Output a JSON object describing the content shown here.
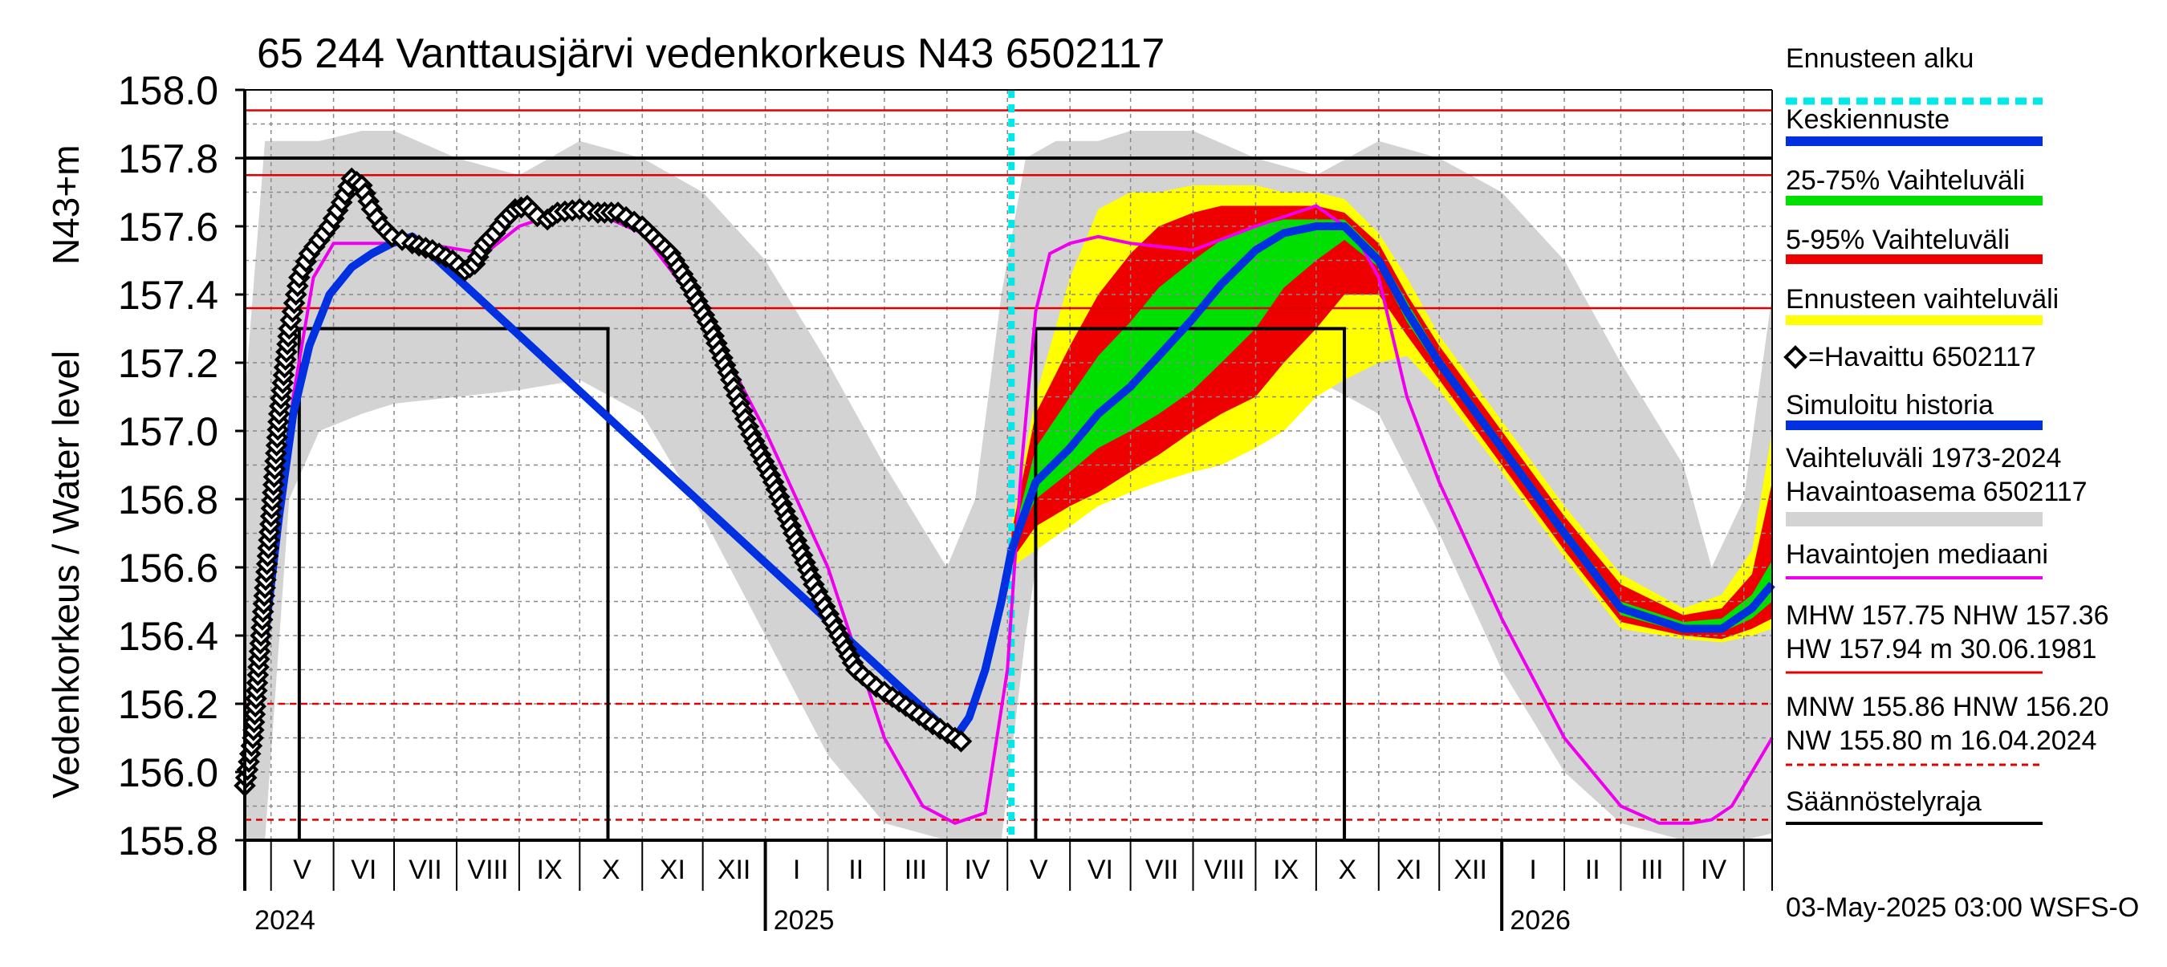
{
  "chart_data": {
    "type": "area",
    "title": "65 244 Vanttausjärvi vedenkorkeus N43 6502117",
    "ylabel": "Vedenkorkeus / Water level",
    "yunit": "N43+m",
    "ylim": [
      155.8,
      158.0
    ],
    "yticks": [
      "155.8",
      "156.0",
      "156.2",
      "156.4",
      "156.6",
      "156.8",
      "157.0",
      "157.2",
      "157.4",
      "157.6",
      "157.8",
      "158.0"
    ],
    "xlim": [
      "2024-04-18",
      "2026-05-15"
    ],
    "months": [
      "V",
      "VI",
      "VII",
      "VIII",
      "IX",
      "X",
      "XI",
      "XII",
      "I",
      "II",
      "III",
      "IV",
      "V",
      "VI",
      "VII",
      "VIII",
      "IX",
      "X",
      "XI",
      "XII",
      "I",
      "II",
      "III",
      "IV"
    ],
    "years": [
      "2024",
      "2025",
      "2026"
    ],
    "forecast_start": "2025-05-03",
    "ref_lines": [
      {
        "name": "HW",
        "value": 157.94,
        "style": "solid",
        "color": "#e00000"
      },
      {
        "name": "Säännöstelyraja upper",
        "value": 157.8,
        "style": "solid",
        "color": "#000000"
      },
      {
        "name": "MHW",
        "value": 157.75,
        "style": "solid",
        "color": "#e00000"
      },
      {
        "name": "NHW",
        "value": 157.36,
        "style": "solid",
        "color": "#e00000"
      },
      {
        "name": "HNW",
        "value": 156.2,
        "style": "dashed",
        "color": "#e00000"
      },
      {
        "name": "MNW",
        "value": 155.86,
        "style": "dashed",
        "color": "#e00000"
      },
      {
        "name": "NW",
        "value": 155.8,
        "style": "dashed",
        "color": "#e00000"
      }
    ],
    "regulation_periods": [
      {
        "start": "2024-05-15",
        "end": "2024-10-15",
        "value": 157.3
      },
      {
        "start": "2025-05-15",
        "end": "2025-10-15",
        "value": 157.3
      }
    ],
    "observed": {
      "name": "=Havaittu 6502117",
      "x": [
        "2024-04-18",
        "2024-04-22",
        "2024-04-26",
        "2024-05-01",
        "2024-05-05",
        "2024-05-10",
        "2024-05-15",
        "2024-05-20",
        "2024-05-25",
        "2024-05-30",
        "2024-06-05",
        "2024-06-10",
        "2024-06-15",
        "2024-06-20",
        "2024-06-25",
        "2024-06-30",
        "2024-07-05",
        "2024-07-10",
        "2024-07-20",
        "2024-07-30",
        "2024-08-05",
        "2024-08-10",
        "2024-08-15",
        "2024-08-20",
        "2024-08-25",
        "2024-08-30",
        "2024-09-05",
        "2024-09-10",
        "2024-09-15",
        "2024-09-20",
        "2024-10-01",
        "2024-10-10",
        "2024-10-20",
        "2024-11-01",
        "2024-11-15",
        "2024-11-25",
        "2024-12-05",
        "2024-12-15",
        "2024-12-25",
        "2025-01-05",
        "2025-01-15",
        "2025-01-25",
        "2025-02-05",
        "2025-02-15",
        "2025-02-25",
        "2025-03-05",
        "2025-03-15",
        "2025-03-25",
        "2025-04-05",
        "2025-04-08"
      ],
      "y": [
        155.96,
        156.1,
        156.4,
        156.75,
        157.05,
        157.3,
        157.45,
        157.52,
        157.56,
        157.6,
        157.67,
        157.74,
        157.72,
        157.65,
        157.6,
        157.57,
        157.56,
        157.55,
        157.53,
        157.5,
        157.47,
        157.49,
        157.55,
        157.58,
        157.62,
        157.65,
        157.66,
        157.63,
        157.62,
        157.64,
        157.65,
        157.64,
        157.64,
        157.6,
        157.52,
        157.42,
        157.3,
        157.15,
        156.99,
        156.85,
        156.7,
        156.55,
        156.42,
        156.3,
        156.25,
        156.22,
        156.18,
        156.14,
        156.1,
        156.09
      ]
    },
    "simulated": {
      "name": "Simuloitu historia",
      "x": [
        "2024-04-18",
        "2024-04-26",
        "2024-05-05",
        "2024-05-12",
        "2024-05-20",
        "2024-05-30",
        "2024-06-10",
        "2024-06-20",
        "2024-06-30",
        "2024-07-10",
        "2025-04-05",
        "2025-04-12",
        "2025-04-20",
        "2025-04-28",
        "2025-05-03"
      ],
      "y": [
        156.0,
        156.3,
        156.75,
        157.05,
        157.25,
        157.4,
        157.48,
        157.52,
        157.55,
        157.57,
        156.1,
        156.16,
        156.3,
        156.5,
        156.65
      ]
    },
    "median": {
      "name": "Havaintojen mediaani",
      "x": [
        "2024-04-18",
        "2024-05-01",
        "2024-05-12",
        "2024-05-22",
        "2024-06-01",
        "2024-06-20",
        "2024-07-15",
        "2024-08-15",
        "2024-09-01",
        "2024-10-01",
        "2024-11-01",
        "2024-12-01",
        "2025-01-01",
        "2025-02-01",
        "2025-03-01",
        "2025-03-20",
        "2025-04-05",
        "2025-04-20",
        "2025-05-01",
        "2025-05-08",
        "2025-05-15",
        "2025-05-22",
        "2025-06-01",
        "2025-06-15",
        "2025-07-01",
        "2025-08-01",
        "2025-09-01",
        "2025-10-01",
        "2025-10-20",
        "2025-11-01",
        "2025-11-15",
        "2025-12-01",
        "2026-01-01",
        "2026-02-01",
        "2026-03-01",
        "2026-03-20",
        "2026-04-05",
        "2026-04-15",
        "2026-04-25",
        "2026-05-05",
        "2026-05-15"
      ],
      "y": [
        156.05,
        156.55,
        157.1,
        157.45,
        157.55,
        157.55,
        157.55,
        157.52,
        157.6,
        157.66,
        157.58,
        157.35,
        157.0,
        156.6,
        156.1,
        155.9,
        155.85,
        155.88,
        156.3,
        156.9,
        157.35,
        157.52,
        157.55,
        157.57,
        157.55,
        157.53,
        157.6,
        157.66,
        157.58,
        157.45,
        157.1,
        156.85,
        156.45,
        156.1,
        155.9,
        155.85,
        155.85,
        155.86,
        155.9,
        156.0,
        156.1
      ]
    },
    "forecast_mean": {
      "name": "Keskiennuste",
      "x": [
        "2025-05-03",
        "2025-05-15",
        "2025-06-01",
        "2025-06-15",
        "2025-07-01",
        "2025-07-15",
        "2025-08-01",
        "2025-08-15",
        "2025-09-01",
        "2025-09-15",
        "2025-10-01",
        "2025-10-15",
        "2025-11-01",
        "2025-11-15",
        "2025-12-01",
        "2026-01-01",
        "2026-02-01",
        "2026-03-01",
        "2026-04-01",
        "2026-04-20",
        "2026-05-05",
        "2026-05-15"
      ],
      "y": [
        156.65,
        156.85,
        156.95,
        157.05,
        157.13,
        157.22,
        157.33,
        157.43,
        157.53,
        157.58,
        157.6,
        157.6,
        157.5,
        157.35,
        157.2,
        156.95,
        156.7,
        156.48,
        156.42,
        156.42,
        156.48,
        156.55
      ]
    },
    "band_25_75": {
      "name": "25-75% Vaihteluväli",
      "x": [
        "2025-05-03",
        "2025-05-15",
        "2025-06-01",
        "2025-06-15",
        "2025-07-01",
        "2025-07-15",
        "2025-08-01",
        "2025-08-15",
        "2025-09-01",
        "2025-09-15",
        "2025-10-01",
        "2025-10-15",
        "2025-11-01",
        "2025-11-15",
        "2025-12-01",
        "2026-01-01",
        "2026-02-01",
        "2026-03-01",
        "2026-04-01",
        "2026-04-20",
        "2026-05-05",
        "2026-05-15"
      ],
      "lower": [
        156.65,
        156.8,
        156.88,
        156.95,
        157.0,
        157.05,
        157.12,
        157.2,
        157.3,
        157.42,
        157.5,
        157.56,
        157.48,
        157.32,
        157.18,
        156.93,
        156.68,
        156.46,
        156.41,
        156.41,
        156.45,
        156.5
      ],
      "upper": [
        156.67,
        156.95,
        157.1,
        157.22,
        157.32,
        157.42,
        157.5,
        157.56,
        157.6,
        157.62,
        157.62,
        157.62,
        157.52,
        157.38,
        157.22,
        156.97,
        156.72,
        156.5,
        156.44,
        156.45,
        156.52,
        156.62
      ]
    },
    "band_5_95": {
      "name": "5-95% Vaihteluväli",
      "x": [
        "2025-05-03",
        "2025-05-15",
        "2025-06-01",
        "2025-06-15",
        "2025-07-01",
        "2025-07-15",
        "2025-08-01",
        "2025-08-15",
        "2025-09-01",
        "2025-09-15",
        "2025-10-01",
        "2025-10-15",
        "2025-11-01",
        "2025-11-15",
        "2025-12-01",
        "2026-01-01",
        "2026-02-01",
        "2026-03-01",
        "2026-04-01",
        "2026-04-20",
        "2026-05-05",
        "2026-05-15"
      ],
      "lower": [
        156.62,
        156.72,
        156.78,
        156.82,
        156.88,
        156.93,
        157.0,
        157.05,
        157.1,
        157.2,
        157.3,
        157.4,
        157.4,
        157.28,
        157.15,
        156.9,
        156.65,
        156.44,
        156.4,
        156.39,
        156.42,
        156.45
      ],
      "upper": [
        156.7,
        157.05,
        157.25,
        157.4,
        157.52,
        157.6,
        157.64,
        157.66,
        157.66,
        157.66,
        157.66,
        157.64,
        157.55,
        157.4,
        157.25,
        157.0,
        156.75,
        156.55,
        156.46,
        156.48,
        156.58,
        156.85
      ]
    },
    "band_full": {
      "name": "Ennusteen vaihteluväli",
      "x": [
        "2025-05-03",
        "2025-05-15",
        "2025-06-01",
        "2025-06-15",
        "2025-07-01",
        "2025-07-15",
        "2025-08-01",
        "2025-08-15",
        "2025-09-01",
        "2025-09-15",
        "2025-10-01",
        "2025-10-15",
        "2025-11-01",
        "2025-11-15",
        "2025-12-01",
        "2026-01-01",
        "2026-02-01",
        "2026-03-01",
        "2026-04-01",
        "2026-04-20",
        "2026-05-05",
        "2026-05-15"
      ],
      "lower": [
        156.6,
        156.65,
        156.72,
        156.78,
        156.82,
        156.85,
        156.88,
        156.9,
        156.95,
        157.0,
        157.1,
        157.15,
        157.2,
        157.22,
        157.12,
        156.88,
        156.63,
        156.42,
        156.39,
        156.38,
        156.4,
        156.42
      ],
      "upper": [
        156.72,
        157.1,
        157.45,
        157.65,
        157.7,
        157.7,
        157.72,
        157.72,
        157.72,
        157.7,
        157.7,
        157.68,
        157.58,
        157.45,
        157.28,
        157.03,
        156.78,
        156.58,
        156.48,
        156.52,
        156.65,
        157.0
      ]
    },
    "hist_band": {
      "name": "Vaihteluväli 1973-2024 Havaintoasema 6502117",
      "x": [
        "2024-04-18",
        "2024-04-28",
        "2024-05-10",
        "2024-05-25",
        "2024-06-15",
        "2024-07-01",
        "2024-08-01",
        "2024-09-01",
        "2024-10-01",
        "2024-11-01",
        "2024-12-01",
        "2025-01-01",
        "2025-02-01",
        "2025-03-01",
        "2025-04-01",
        "2025-04-15",
        "2025-04-28",
        "2025-05-10",
        "2025-05-25",
        "2025-06-15",
        "2025-07-01",
        "2025-08-01",
        "2025-09-01",
        "2025-10-01",
        "2025-11-01",
        "2025-12-01",
        "2026-01-01",
        "2026-02-01",
        "2026-03-01",
        "2026-04-01",
        "2026-04-15",
        "2026-05-01",
        "2026-05-15"
      ],
      "lower": [
        155.8,
        155.8,
        156.8,
        157.0,
        157.05,
        157.08,
        157.1,
        157.12,
        157.15,
        157.05,
        156.75,
        156.4,
        156.05,
        155.85,
        155.8,
        155.8,
        155.8,
        156.4,
        157.0,
        157.05,
        157.08,
        157.1,
        157.12,
        157.15,
        157.05,
        156.7,
        156.3,
        156.0,
        155.85,
        155.8,
        155.8,
        155.8,
        155.82
      ],
      "upper": [
        157.1,
        157.85,
        157.85,
        157.85,
        157.88,
        157.88,
        157.8,
        157.75,
        157.85,
        157.8,
        157.7,
        157.5,
        157.2,
        156.9,
        156.6,
        156.8,
        157.4,
        157.8,
        157.85,
        157.85,
        157.88,
        157.88,
        157.8,
        157.75,
        157.85,
        157.8,
        157.7,
        157.5,
        157.2,
        156.9,
        156.6,
        156.8,
        157.4
      ]
    },
    "legend": {
      "forecast_start": "Ennusteen alku",
      "mean": "Keskiennuste",
      "p25_75": "25-75% Vaihteluväli",
      "p5_95": "5-95% Vaihteluväli",
      "range": "Ennusteen vaihteluväli",
      "observed": "=Havaittu 6502117",
      "simulated": "Simuloitu historia",
      "hist_range_1": "Vaihteluväli 1973-2024",
      "hist_range_2": " Havaintoasema 6502117",
      "median": "Havaintojen mediaani",
      "mhw_1": "MHW 157.75 NHW 157.36",
      "mhw_2": "HW 157.94 m 30.06.1981",
      "mnw_1": "MNW 155.86 HNW 156.20",
      "mnw_2": "NW 155.80 m 16.04.2024",
      "regulation": "Säännöstelyraja"
    },
    "footer": "03-May-2025 03:00 WSFS-O",
    "colors": {
      "forecast_start": "#00e8e8",
      "mean": "#0030e0",
      "p25_75": "#00e000",
      "p5_95": "#ee0000",
      "range": "#ffff00",
      "hist_band": "#d3d3d3",
      "median": "#ee00ee",
      "simulated": "#0030e0",
      "ref": "#e00000",
      "grid": "#888888"
    }
  }
}
